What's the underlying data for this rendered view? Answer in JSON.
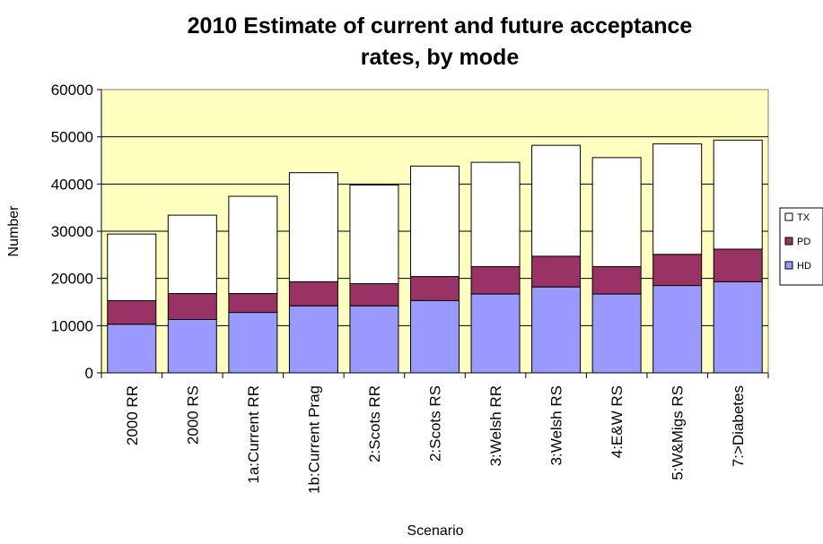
{
  "chart_data": {
    "type": "bar",
    "stacked": true,
    "title_lines": [
      "2010 Estimate of current and future acceptance",
      "rates, by mode"
    ],
    "xlabel": "Scenario",
    "ylabel": "Number",
    "ylim": [
      0,
      60000
    ],
    "yticks": [
      0,
      10000,
      20000,
      30000,
      40000,
      50000,
      60000
    ],
    "ytick_labels": [
      "0",
      "10000",
      "20000",
      "30000",
      "40000",
      "50000",
      "60000"
    ],
    "grid": true,
    "plot_background": "#ffffc0",
    "legend_position": "right",
    "categories": [
      "2000 RR",
      "2000 RS",
      "1a:Current RR",
      "1b:Current Prag",
      "2:Scots RR",
      "2:Scots RS",
      "3:Welsh RR",
      "3:Welsh RS",
      "4:E&W RS",
      "5:W&Migs RS",
      "7:>Diabetes"
    ],
    "series": [
      {
        "name": "HD",
        "color": "#9999ff",
        "values": [
          10300,
          11300,
          12800,
          14200,
          14200,
          15300,
          16700,
          18200,
          16700,
          18500,
          19300
        ]
      },
      {
        "name": "PD",
        "color": "#993366",
        "values": [
          5000,
          5500,
          4000,
          5100,
          4700,
          5100,
          5800,
          6500,
          5800,
          6600,
          6900
        ]
      },
      {
        "name": "TX",
        "color": "#ffffff",
        "values": [
          14100,
          16600,
          20600,
          23100,
          20900,
          23400,
          22100,
          23500,
          23100,
          23400,
          23100
        ]
      }
    ]
  }
}
